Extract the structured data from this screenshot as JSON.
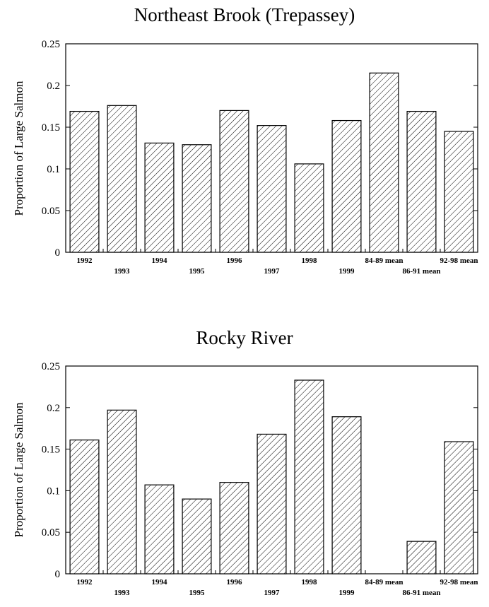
{
  "chart_data": [
    {
      "type": "bar",
      "title": "Northeast Brook (Trepassey)",
      "ylabel": "Proportion of Large Salmon",
      "xlabel": "",
      "ylim": [
        0,
        0.25
      ],
      "yticks": [
        "0",
        "0.05",
        "0.1",
        "0.15",
        "0.2",
        "0.25"
      ],
      "categories": [
        "1992",
        "1993",
        "1994",
        "1995",
        "1996",
        "1997",
        "1998",
        "1999",
        "84-89 mean",
        "86-91 mean",
        "92-98 mean"
      ],
      "values": [
        0.169,
        0.176,
        0.131,
        0.129,
        0.17,
        0.152,
        0.106,
        0.158,
        0.215,
        0.169,
        0.145
      ],
      "fill": "diagonal-hatch",
      "grid": false,
      "legend": "none"
    },
    {
      "type": "bar",
      "title": "Rocky River",
      "ylabel": "Proportion of Large Salmon",
      "xlabel": "",
      "ylim": [
        0,
        0.25
      ],
      "yticks": [
        "0",
        "0.05",
        "0.1",
        "0.15",
        "0.2",
        "0.25"
      ],
      "categories": [
        "1992",
        "1993",
        "1994",
        "1995",
        "1996",
        "1997",
        "1998",
        "1999",
        "84-89 mean",
        "86-91 mean",
        "92-98 mean"
      ],
      "values": [
        0.161,
        0.197,
        0.107,
        0.09,
        0.11,
        0.168,
        0.233,
        0.189,
        0,
        0.039,
        0.159
      ],
      "fill": "diagonal-hatch",
      "grid": false,
      "legend": "none"
    }
  ]
}
